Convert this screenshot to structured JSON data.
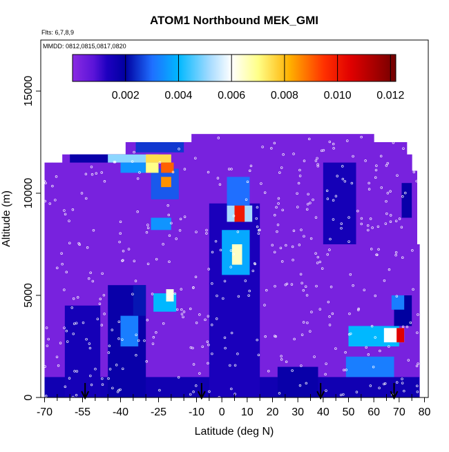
{
  "chart_data": {
    "type": "heatmap",
    "title": "ATOM1 Northbound MEK_GMI",
    "subtitle_flights": "Flts: 6,7,8,9",
    "subtitle_dates": "MMDD: 0812,0815,0817,0820",
    "xlabel": "Latitude (deg N)",
    "ylabel": "Altitude (m)",
    "xlim": [
      -70,
      80
    ],
    "ylim": [
      0,
      17500
    ],
    "x_ticks": [
      -70,
      -55,
      -40,
      -25,
      -10,
      0,
      10,
      20,
      30,
      40,
      50,
      60,
      70,
      80
    ],
    "x_tick_labels": [
      "-70",
      "-55",
      "-40",
      "-25",
      "-10",
      "0",
      "10",
      "20",
      "30",
      "40",
      "50",
      "60",
      "70",
      "80"
    ],
    "x_minor_ticks": [
      -65,
      -60,
      -50,
      -45,
      -35,
      -30,
      -20,
      -15,
      -5,
      5,
      15,
      25,
      35,
      45,
      55,
      65,
      75
    ],
    "y_ticks": [
      0,
      5000,
      10000,
      15000
    ],
    "y_tick_labels": [
      "0",
      "5000",
      "10000",
      "15000"
    ],
    "colorbar": {
      "range": [
        0,
        0.0122
      ],
      "ticks": [
        0.002,
        0.004,
        0.006,
        0.008,
        0.01,
        0.012
      ],
      "tick_labels": [
        "0.002",
        "0.004",
        "0.006",
        "0.008",
        "0.010",
        "0.012"
      ],
      "stops": [
        {
          "v": 0.0,
          "color": "#8a2be2"
        },
        {
          "v": 0.0008,
          "color": "#5a14d8"
        },
        {
          "v": 0.0013,
          "color": "#1e00c0"
        },
        {
          "v": 0.002,
          "color": "#0000a0"
        },
        {
          "v": 0.003,
          "color": "#1f6fff"
        },
        {
          "v": 0.004,
          "color": "#00b8ff"
        },
        {
          "v": 0.0052,
          "color": "#a8dcff"
        },
        {
          "v": 0.006,
          "color": "#ffffff"
        },
        {
          "v": 0.007,
          "color": "#ffff88"
        },
        {
          "v": 0.0082,
          "color": "#ffb000"
        },
        {
          "v": 0.0095,
          "color": "#ff3000"
        },
        {
          "v": 0.0105,
          "color": "#e00000"
        },
        {
          "v": 0.0115,
          "color": "#a00000"
        },
        {
          "v": 0.0122,
          "color": "#700000"
        }
      ]
    },
    "background_value": 0.0003,
    "columns": [
      {
        "x0": -70,
        "x1": -67,
        "ztop": 11500
      },
      {
        "x0": -67,
        "x1": -63,
        "ztop": 11500
      },
      {
        "x0": -63,
        "x1": -57,
        "ztop": 11900
      },
      {
        "x0": -57,
        "x1": -38,
        "ztop": 11900
      },
      {
        "x0": -38,
        "x1": -16,
        "ztop": 12500
      },
      {
        "x0": -16,
        "x1": -12,
        "ztop": 12500
      },
      {
        "x0": -12,
        "x1": 60,
        "ztop": 12900
      },
      {
        "x0": 60,
        "x1": 73,
        "ztop": 12500
      },
      {
        "x0": 73,
        "x1": 75,
        "ztop": 11900
      },
      {
        "x0": 75,
        "x1": 77,
        "ztop": 11100
      },
      {
        "x0": 77,
        "x1": 78,
        "ztop": 7500
      }
    ],
    "patches": [
      {
        "x0": -70,
        "x1": 78,
        "y0": 0,
        "y1": 1000,
        "v": 0.0016
      },
      {
        "x0": -62,
        "x1": -48,
        "y0": 0,
        "y1": 4500,
        "v": 0.0015
      },
      {
        "x0": -45,
        "x1": -30,
        "y0": 0,
        "y1": 5500,
        "v": 0.0018
      },
      {
        "x0": -40,
        "x1": -33,
        "y0": 2500,
        "y1": 4000,
        "v": 0.0032
      },
      {
        "x0": -35,
        "x1": -30,
        "y0": 4000,
        "y1": 5500,
        "v": 0.0022
      },
      {
        "x0": -27,
        "x1": -18,
        "y0": 4200,
        "y1": 5100,
        "v": 0.004
      },
      {
        "x0": -22,
        "x1": -19,
        "y0": 4700,
        "y1": 5300,
        "v": 0.0062
      },
      {
        "x0": -5,
        "x1": 15,
        "y0": 0,
        "y1": 9500,
        "v": 0.0014
      },
      {
        "x0": 0,
        "x1": 11,
        "y0": 6000,
        "y1": 8200,
        "v": 0.0038
      },
      {
        "x0": 4,
        "x1": 8,
        "y0": 6500,
        "y1": 7500,
        "v": 0.0065
      },
      {
        "x0": 2,
        "x1": 12,
        "y0": 8600,
        "y1": 9400,
        "v": 0.0052
      },
      {
        "x0": 5,
        "x1": 9,
        "y0": 8600,
        "y1": 9400,
        "v": 0.01
      },
      {
        "x0": 2,
        "x1": 11,
        "y0": 9400,
        "y1": 10800,
        "v": 0.003
      },
      {
        "x0": -28,
        "x1": -17,
        "y0": 9700,
        "y1": 11200,
        "v": 0.0028
      },
      {
        "x0": -60,
        "x1": -30,
        "y0": 11500,
        "y1": 11900,
        "v": 0.0018
      },
      {
        "x0": -45,
        "x1": -25,
        "y0": 11500,
        "y1": 11900,
        "v": 0.005
      },
      {
        "x0": -30,
        "x1": -20,
        "y0": 11500,
        "y1": 11900,
        "v": 0.0075
      },
      {
        "x0": -40,
        "x1": -30,
        "y0": 11000,
        "y1": 11500,
        "v": 0.0035
      },
      {
        "x0": -30,
        "x1": -25,
        "y0": 11000,
        "y1": 11500,
        "v": 0.007
      },
      {
        "x0": -24,
        "x1": -19,
        "y0": 11000,
        "y1": 11500,
        "v": 0.009
      },
      {
        "x0": -34,
        "x1": -15,
        "y0": 12000,
        "y1": 12500,
        "v": 0.0025
      },
      {
        "x0": -24,
        "x1": -20,
        "y0": 10300,
        "y1": 10800,
        "v": 0.0085
      },
      {
        "x0": -28,
        "x1": -20,
        "y0": 8200,
        "y1": 8800,
        "v": 0.0035
      },
      {
        "x0": 22,
        "x1": 38,
        "y0": 0,
        "y1": 1500,
        "v": 0.0018
      },
      {
        "x0": 40,
        "x1": 53,
        "y0": 7500,
        "y1": 11500,
        "v": 0.0015
      },
      {
        "x0": 49,
        "x1": 68,
        "y0": 1000,
        "y1": 2000,
        "v": 0.0032
      },
      {
        "x0": 50,
        "x1": 70,
        "y0": 2500,
        "y1": 3500,
        "v": 0.004
      },
      {
        "x0": 64,
        "x1": 72,
        "y0": 2700,
        "y1": 3400,
        "v": 0.006
      },
      {
        "x0": 69,
        "x1": 72,
        "y0": 2700,
        "y1": 3400,
        "v": 0.0105
      },
      {
        "x0": 68,
        "x1": 75,
        "y0": 3500,
        "y1": 5000,
        "v": 0.002
      },
      {
        "x0": 67,
        "x1": 72,
        "y0": 4300,
        "y1": 5000,
        "v": 0.0032
      },
      {
        "x0": 71,
        "x1": 75,
        "y0": 8800,
        "y1": 10500,
        "v": 0.0018
      }
    ],
    "flight_markers_x": [
      -54,
      -8,
      39,
      68
    ],
    "obs_points_seed": 7
  }
}
